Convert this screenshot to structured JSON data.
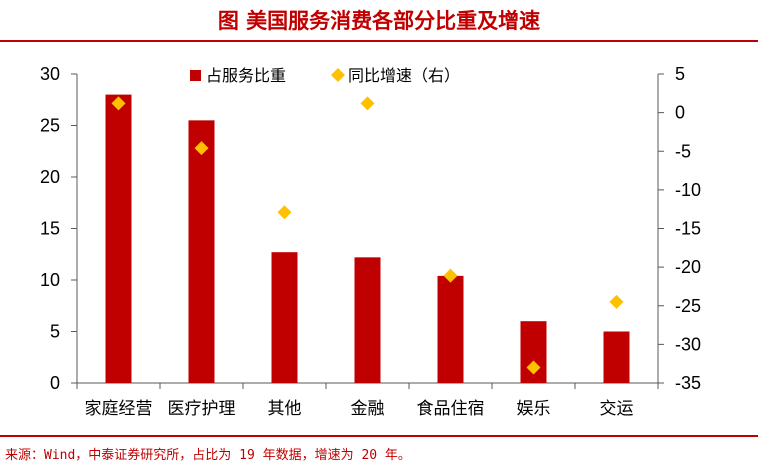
{
  "header": {
    "title": "图  美国服务消费各部分比重及增速"
  },
  "footer": {
    "source": "来源：Wind，中泰证券研究所，占比为 19 年数据，增速为 20 年。"
  },
  "colors": {
    "brand": "#c00000",
    "bar": "#c00000",
    "marker": "#ffc000"
  },
  "chart_data": {
    "type": "bar",
    "categories": [
      "家庭经营",
      "医疗护理",
      "其他",
      "金融",
      "食品住宿",
      "娱乐",
      "交运"
    ],
    "category_labels": [
      "家庭经营",
      "医疗护理",
      "其他",
      "金融",
      "食品住宿",
      "娱乐",
      "交运"
    ],
    "series": [
      {
        "name": "占服务比重",
        "type": "bar",
        "axis": "left",
        "values": [
          28,
          25.5,
          12.7,
          12.2,
          10.4,
          6.0,
          5.0
        ]
      },
      {
        "name": "同比增速（右）",
        "type": "scatter",
        "axis": "right",
        "marker": "diamond",
        "values": [
          1.2,
          -4.6,
          -12.9,
          1.2,
          -21.1,
          -33.0,
          -24.5
        ]
      }
    ],
    "y_left": {
      "lim": [
        0,
        30
      ],
      "ticks": [
        0,
        5,
        10,
        15,
        20,
        25,
        30
      ]
    },
    "y_right": {
      "lim": [
        -35,
        5
      ],
      "ticks": [
        5,
        0,
        -5,
        -10,
        -15,
        -20,
        -25,
        -30,
        -35
      ]
    },
    "legend": "top-center",
    "grid": false
  }
}
